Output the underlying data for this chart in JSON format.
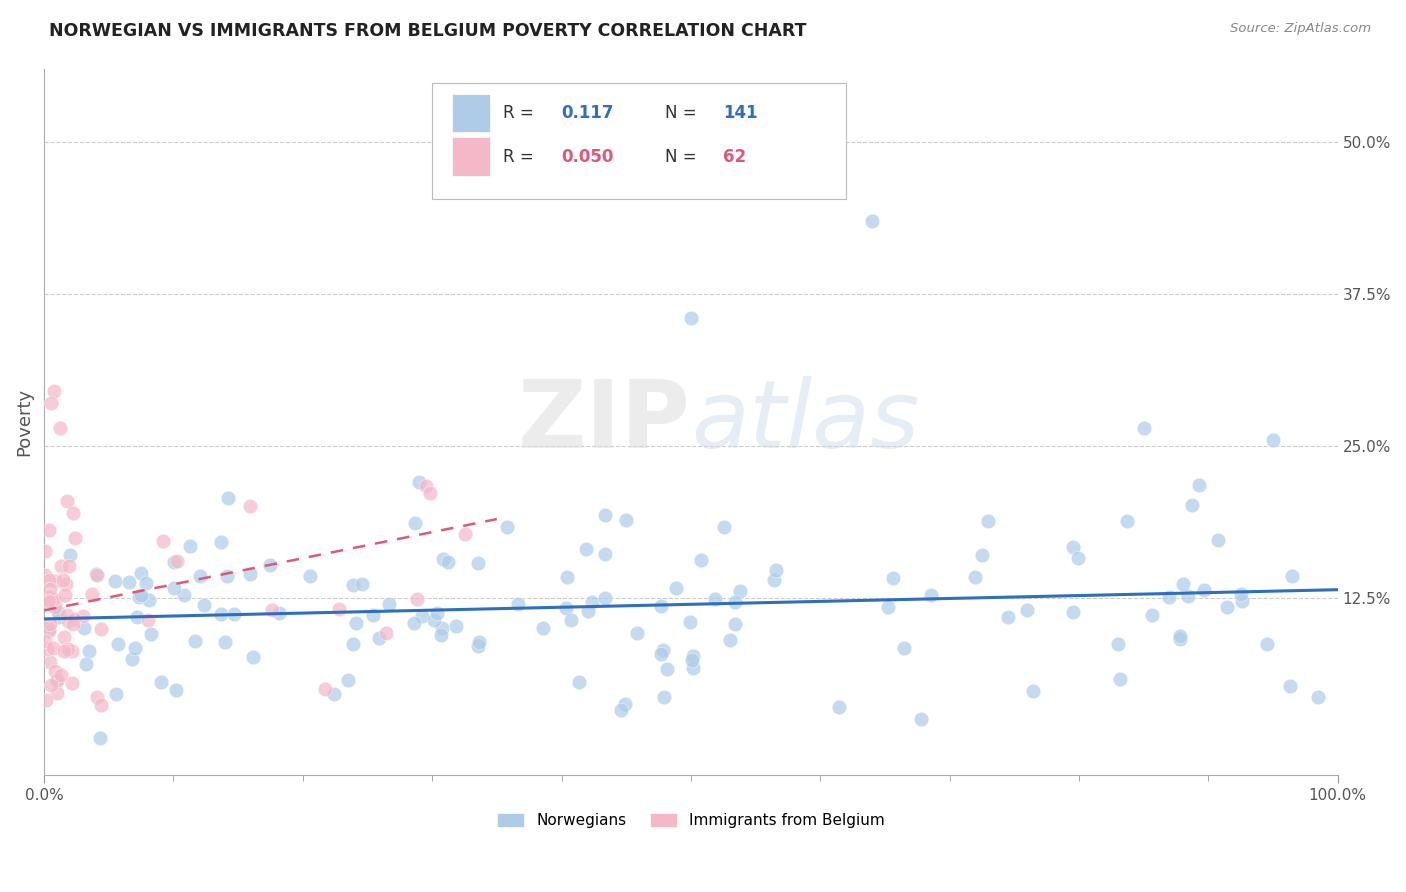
{
  "title": "NORWEGIAN VS IMMIGRANTS FROM BELGIUM POVERTY CORRELATION CHART",
  "source": "Source: ZipAtlas.com",
  "ylabel": "Poverty",
  "xlim": [
    0.0,
    1.0
  ],
  "ylim": [
    -0.02,
    0.56
  ],
  "ytick_labels": [
    "12.5%",
    "25.0%",
    "37.5%",
    "50.0%"
  ],
  "ytick_values": [
    0.125,
    0.25,
    0.375,
    0.5
  ],
  "background_color": "#ffffff",
  "grid_color": "#cccccc",
  "norwegian_R": 0.117,
  "norwegian_N": 141,
  "belgian_R": 0.05,
  "belgian_N": 62,
  "norwegian_color": "#aecce8",
  "norwegian_line_color": "#2e6fbe",
  "belgian_color": "#f5b8c8",
  "belgian_line_color": "#e05878",
  "nor_trend_x0": 0.0,
  "nor_trend_y0": 0.108,
  "nor_trend_x1": 1.0,
  "nor_trend_y1": 0.132,
  "bel_trend_x0": 0.0,
  "bel_trend_y0": 0.115,
  "bel_trend_x1": 0.35,
  "bel_trend_y1": 0.19
}
